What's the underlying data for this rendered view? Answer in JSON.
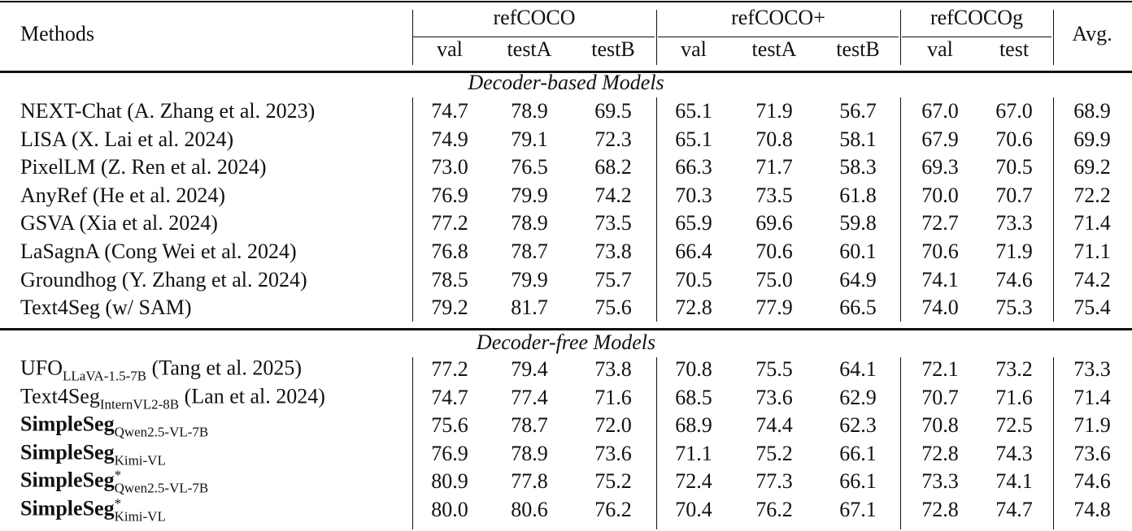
{
  "table": {
    "header": {
      "methods": "Methods",
      "groups": [
        {
          "label": "refCOCO",
          "columns": [
            "val",
            "testA",
            "testB"
          ]
        },
        {
          "label": "refCOCO+",
          "columns": [
            "val",
            "testA",
            "testB"
          ]
        },
        {
          "label": "refCOCOg",
          "columns": [
            "val",
            "test"
          ]
        }
      ],
      "avg": "Avg."
    },
    "sections": [
      {
        "title": "Decoder-based Models",
        "rows": [
          {
            "method": "NEXT-Chat (A. Zhang et al. 2023)",
            "values": [
              "74.7",
              "78.9",
              "69.5",
              "65.1",
              "71.9",
              "56.7",
              "67.0",
              "67.0",
              "68.9"
            ]
          },
          {
            "method": "LISA (X. Lai et al. 2024)",
            "values": [
              "74.9",
              "79.1",
              "72.3",
              "65.1",
              "70.8",
              "58.1",
              "67.9",
              "70.6",
              "69.9"
            ]
          },
          {
            "method": "PixelLM (Z. Ren et al. 2024)",
            "values": [
              "73.0",
              "76.5",
              "68.2",
              "66.3",
              "71.7",
              "58.3",
              "69.3",
              "70.5",
              "69.2"
            ]
          },
          {
            "method": "AnyRef (He et al. 2024)",
            "values": [
              "76.9",
              "79.9",
              "74.2",
              "70.3",
              "73.5",
              "61.8",
              "70.0",
              "70.7",
              "72.2"
            ]
          },
          {
            "method": "GSVA (Xia et al. 2024)",
            "values": [
              "77.2",
              "78.9",
              "73.5",
              "65.9",
              "69.6",
              "59.8",
              "72.7",
              "73.3",
              "71.4"
            ]
          },
          {
            "method": "LaSagnA (Cong Wei et al. 2024)",
            "values": [
              "76.8",
              "78.7",
              "73.8",
              "66.4",
              "70.6",
              "60.1",
              "70.6",
              "71.9",
              "71.1"
            ]
          },
          {
            "method": "Groundhog (Y. Zhang et al. 2024)",
            "values": [
              "78.5",
              "79.9",
              "75.7",
              "70.5",
              "75.0",
              "64.9",
              "74.1",
              "74.6",
              "74.2"
            ]
          },
          {
            "method": "Text4Seg (w/ SAM)",
            "values": [
              "79.2",
              "81.7",
              "75.6",
              "72.8",
              "77.9",
              "66.5",
              "74.0",
              "75.3",
              "75.4"
            ]
          }
        ]
      },
      {
        "title": "Decoder-free Models",
        "rows": [
          {
            "method": "UFO",
            "sub": "LLaVA-1.5-7B",
            "cite": "(Tang et al. 2025)",
            "values": [
              "77.2",
              "79.4",
              "73.8",
              "70.8",
              "75.5",
              "64.1",
              "72.1",
              "73.2",
              "73.3"
            ]
          },
          {
            "method": "Text4Seg",
            "sub": "InternVL2-8B",
            "cite": "(Lan et al. 2024)",
            "values": [
              "74.7",
              "77.4",
              "71.6",
              "68.5",
              "73.6",
              "62.9",
              "70.7",
              "71.6",
              "71.4"
            ]
          },
          {
            "method": "SimpleSeg",
            "sub": "Qwen2.5-VL-7B",
            "bold": true,
            "values": [
              "75.6",
              "78.7",
              "72.0",
              "68.9",
              "74.4",
              "62.3",
              "70.8",
              "72.5",
              "71.9"
            ]
          },
          {
            "method": "SimpleSeg",
            "sub": "Kimi-VL",
            "bold": true,
            "values": [
              "76.9",
              "78.9",
              "73.6",
              "71.1",
              "75.2",
              "66.1",
              "72.8",
              "74.3",
              "73.6"
            ]
          },
          {
            "method": "SimpleSeg",
            "sup": "*",
            "sub": "Qwen2.5-VL-7B",
            "bold": true,
            "values": [
              "80.9",
              "77.8",
              "75.2",
              "72.4",
              "77.3",
              "66.1",
              "73.3",
              "74.1",
              "74.6"
            ]
          },
          {
            "method": "SimpleSeg",
            "sup": "*",
            "sub": "Kimi-VL",
            "bold": true,
            "values": [
              "80.0",
              "80.6",
              "76.2",
              "70.4",
              "76.2",
              "67.1",
              "72.8",
              "74.7",
              "74.8"
            ]
          }
        ]
      }
    ]
  }
}
